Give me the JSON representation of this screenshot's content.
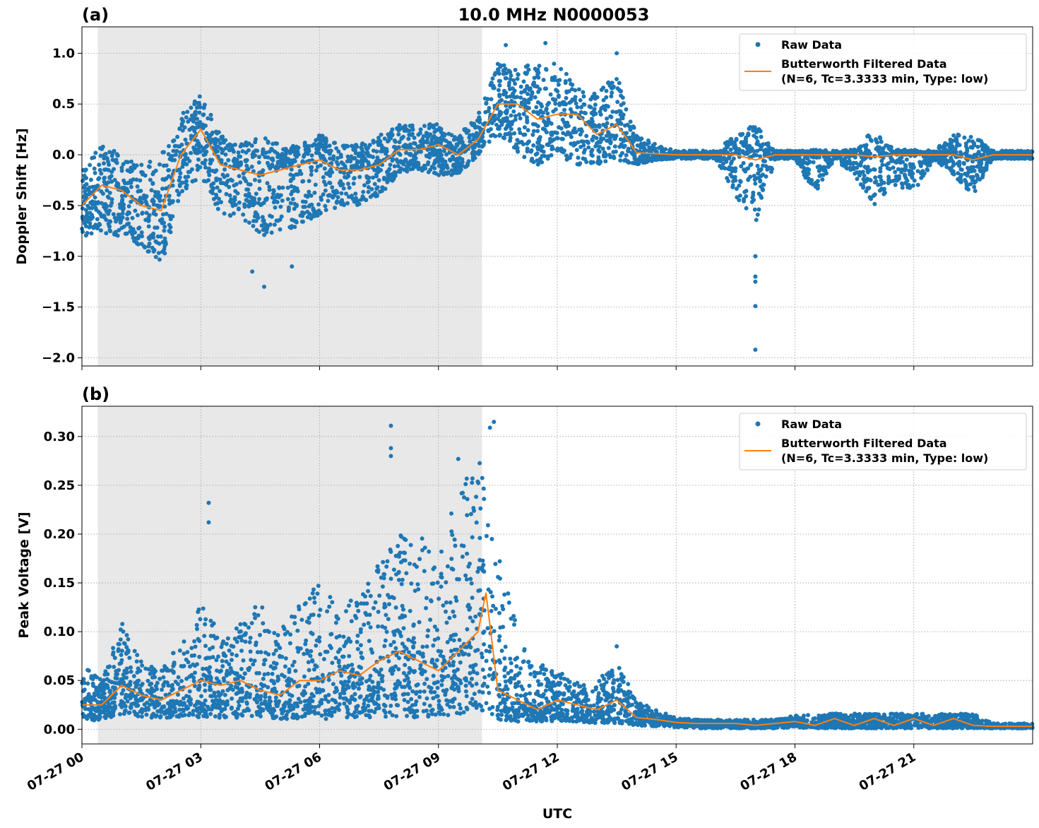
{
  "title": "10.0 MHz N0000053",
  "colors": {
    "raw": "#1f77b4",
    "filtered": "#ff7f0e",
    "shading": "#e8e8e8",
    "grid": "#b0b0b0"
  },
  "legend": {
    "raw": "Raw Data",
    "filtered_line1": "Butterworth Filtered Data",
    "filtered_line2": "(N=6, Tc=3.3333 min, Type: low)",
    "placement": "top-right"
  },
  "chart_data": [
    {
      "type": "scatter",
      "panel_label": "(a)",
      "ylabel": "Doppler Shift [Hz]",
      "xlabel": "",
      "x_date": "07-27",
      "xlim": [
        "00:00",
        "24:00"
      ],
      "ylim": [
        -2.08,
        1.26
      ],
      "yticks": [
        1.0,
        0.5,
        0.0,
        -0.5,
        -1.0,
        -1.5,
        -2.0
      ],
      "ytick_labels": [
        "1.0",
        "0.5",
        "0.0",
        "−0.5",
        "−1.0",
        "−1.5",
        "−2.0"
      ],
      "grid": true,
      "shaded_interval": [
        "00:24",
        "10:06"
      ],
      "raw_envelope": {
        "x": [
          "00:00",
          "00:30",
          "01:00",
          "01:30",
          "02:00",
          "02:30",
          "03:00",
          "03:30",
          "04:00",
          "04:30",
          "05:00",
          "05:30",
          "06:00",
          "06:30",
          "07:00",
          "07:30",
          "08:00",
          "08:30",
          "09:00",
          "09:30",
          "10:00",
          "10:30",
          "11:00",
          "11:30",
          "12:00",
          "12:30",
          "13:00",
          "13:30",
          "14:00",
          "14:30",
          "15:00",
          "15:30",
          "16:00",
          "16:30",
          "17:00",
          "17:30",
          "18:00",
          "18:30",
          "19:00",
          "19:30",
          "20:00",
          "20:30",
          "21:00",
          "21:30",
          "22:00",
          "22:30",
          "23:00",
          "23:30",
          "24:00"
        ],
        "lower": [
          -0.8,
          -0.8,
          -0.8,
          -0.9,
          -1.1,
          -0.4,
          -0.2,
          -0.6,
          -0.6,
          -0.8,
          -0.8,
          -0.7,
          -0.6,
          -0.5,
          -0.5,
          -0.4,
          -0.2,
          -0.15,
          -0.2,
          -0.2,
          0.0,
          0.2,
          0.0,
          -0.1,
          0.0,
          -0.1,
          -0.1,
          -0.05,
          -0.1,
          -0.05,
          -0.04,
          -0.04,
          -0.04,
          -0.4,
          -0.7,
          -0.04,
          -0.04,
          -0.4,
          -0.04,
          -0.2,
          -0.5,
          -0.3,
          -0.4,
          -0.04,
          -0.2,
          -0.4,
          -0.04,
          -0.04,
          -0.04
        ],
        "upper": [
          -0.1,
          0.1,
          0.0,
          -0.1,
          0.0,
          0.4,
          0.6,
          0.2,
          0.1,
          0.2,
          0.1,
          0.1,
          0.2,
          0.1,
          0.1,
          0.2,
          0.3,
          0.3,
          0.3,
          0.2,
          0.4,
          0.9,
          0.9,
          0.9,
          0.9,
          0.7,
          0.6,
          0.8,
          0.2,
          0.1,
          0.04,
          0.04,
          0.04,
          0.2,
          0.3,
          0.04,
          0.04,
          0.05,
          0.04,
          0.05,
          0.25,
          0.05,
          0.05,
          0.04,
          0.2,
          0.2,
          0.04,
          0.04,
          0.04
        ]
      },
      "raw_outliers": [
        [
          "17:00",
          -1.92
        ],
        [
          "17:00",
          -1.49
        ],
        [
          "17:00",
          -1.25
        ],
        [
          "17:00",
          -1.2
        ],
        [
          "17:00",
          -1.0
        ],
        [
          "04:36",
          -1.3
        ],
        [
          "04:18",
          -1.15
        ],
        [
          "05:18",
          -1.1
        ],
        [
          "11:42",
          1.1
        ],
        [
          "10:42",
          1.08
        ],
        [
          "13:30",
          1.0
        ]
      ],
      "filtered": {
        "x": [
          "00:00",
          "00:30",
          "01:00",
          "01:30",
          "02:00",
          "02:30",
          "03:00",
          "03:30",
          "04:00",
          "04:30",
          "05:00",
          "05:30",
          "06:00",
          "06:30",
          "07:00",
          "07:30",
          "08:00",
          "08:30",
          "09:00",
          "09:30",
          "10:00",
          "10:30",
          "11:00",
          "11:30",
          "12:00",
          "12:30",
          "13:00",
          "13:30",
          "14:00",
          "14:30",
          "15:00",
          "15:30",
          "16:00",
          "16:30",
          "17:00",
          "17:30",
          "18:00",
          "18:30",
          "19:00",
          "19:30",
          "20:00",
          "20:30",
          "21:00",
          "21:30",
          "22:00",
          "22:30",
          "23:00",
          "23:30",
          "24:00"
        ],
        "y": [
          -0.5,
          -0.3,
          -0.35,
          -0.5,
          -0.55,
          0.0,
          0.25,
          -0.1,
          -0.15,
          -0.2,
          -0.15,
          -0.1,
          -0.05,
          -0.15,
          -0.15,
          -0.1,
          0.05,
          0.05,
          0.1,
          0.0,
          0.15,
          0.5,
          0.5,
          0.35,
          0.4,
          0.4,
          0.2,
          0.3,
          0.02,
          0.01,
          0.0,
          0.0,
          0.0,
          0.0,
          -0.05,
          0.0,
          0.0,
          0.0,
          0.0,
          0.0,
          -0.02,
          0.0,
          0.0,
          0.0,
          0.0,
          -0.05,
          0.0,
          0.0,
          0.0
        ]
      }
    },
    {
      "type": "scatter",
      "panel_label": "(b)",
      "ylabel": "Peak Voltage [V]",
      "xlabel": "UTC",
      "x_date": "07-27",
      "xlim": [
        "00:00",
        "24:00"
      ],
      "ylim": [
        -0.015,
        0.331
      ],
      "yticks": [
        0.3,
        0.25,
        0.2,
        0.15,
        0.1,
        0.05,
        0.0
      ],
      "ytick_labels": [
        "0.30",
        "0.25",
        "0.20",
        "0.15",
        "0.10",
        "0.05",
        "0.00"
      ],
      "xticks": [
        "00:00",
        "03:00",
        "06:00",
        "09:00",
        "12:00",
        "15:00",
        "18:00",
        "21:00"
      ],
      "xtick_labels": [
        "07-27 00",
        "07-27 03",
        "07-27 06",
        "07-27 09",
        "07-27 12",
        "07-27 15",
        "07-27 18",
        "07-27 21"
      ],
      "grid": true,
      "shaded_interval": [
        "00:24",
        "10:06"
      ],
      "raw_envelope": {
        "x": [
          "00:00",
          "00:30",
          "01:00",
          "01:30",
          "02:00",
          "02:30",
          "03:00",
          "03:30",
          "04:00",
          "04:30",
          "05:00",
          "05:30",
          "06:00",
          "06:30",
          "07:00",
          "07:30",
          "08:00",
          "08:30",
          "09:00",
          "09:30",
          "10:00",
          "10:30",
          "11:00",
          "11:30",
          "12:00",
          "12:30",
          "13:00",
          "13:30",
          "14:00",
          "14:30",
          "15:00",
          "15:30",
          "16:00",
          "16:30",
          "17:00",
          "17:30",
          "18:00",
          "18:30",
          "19:00",
          "19:30",
          "20:00",
          "20:30",
          "21:00",
          "21:30",
          "22:00",
          "22:30",
          "23:00",
          "23:30",
          "24:00"
        ],
        "lower": [
          0.008,
          0.01,
          0.015,
          0.012,
          0.012,
          0.012,
          0.012,
          0.012,
          0.012,
          0.012,
          0.01,
          0.01,
          0.01,
          0.012,
          0.012,
          0.012,
          0.012,
          0.012,
          0.012,
          0.015,
          0.02,
          0.01,
          0.008,
          0.008,
          0.008,
          0.008,
          0.006,
          0.006,
          0.004,
          0.003,
          0.002,
          0.001,
          0.001,
          0.001,
          0.001,
          0.001,
          0.002,
          0.001,
          0.001,
          0.001,
          0.001,
          0.001,
          0.001,
          0.001,
          0.001,
          0.001,
          0.001,
          0.001,
          0.001
        ],
        "upper": [
          0.07,
          0.05,
          0.11,
          0.07,
          0.06,
          0.09,
          0.13,
          0.1,
          0.12,
          0.13,
          0.1,
          0.13,
          0.15,
          0.13,
          0.14,
          0.17,
          0.2,
          0.2,
          0.19,
          0.24,
          0.28,
          0.2,
          0.1,
          0.07,
          0.06,
          0.05,
          0.05,
          0.07,
          0.03,
          0.02,
          0.012,
          0.01,
          0.01,
          0.01,
          0.01,
          0.01,
          0.014,
          0.016,
          0.016,
          0.016,
          0.016,
          0.016,
          0.016,
          0.016,
          0.016,
          0.016,
          0.006,
          0.006,
          0.006
        ]
      },
      "raw_outliers": [
        [
          "07:48",
          0.311
        ],
        [
          "07:48",
          0.288
        ],
        [
          "07:48",
          0.28
        ],
        [
          "03:12",
          0.232
        ],
        [
          "03:12",
          0.212
        ],
        [
          "10:24",
          0.315
        ],
        [
          "10:18",
          0.309
        ],
        [
          "09:30",
          0.277
        ],
        [
          "13:30",
          0.085
        ]
      ],
      "filtered": {
        "x": [
          "00:00",
          "00:30",
          "01:00",
          "01:30",
          "02:00",
          "02:30",
          "03:00",
          "03:30",
          "04:00",
          "04:30",
          "05:00",
          "05:30",
          "06:00",
          "06:30",
          "07:00",
          "07:30",
          "08:00",
          "08:30",
          "09:00",
          "09:30",
          "10:00",
          "10:12",
          "10:30",
          "11:00",
          "11:30",
          "12:00",
          "12:30",
          "13:00",
          "13:30",
          "14:00",
          "14:30",
          "15:00",
          "15:30",
          "16:00",
          "16:30",
          "17:00",
          "17:30",
          "18:00",
          "18:30",
          "19:00",
          "19:30",
          "20:00",
          "20:30",
          "21:00",
          "21:30",
          "22:00",
          "22:30",
          "23:00",
          "23:30",
          "24:00"
        ],
        "y": [
          0.025,
          0.025,
          0.045,
          0.035,
          0.03,
          0.04,
          0.05,
          0.045,
          0.05,
          0.04,
          0.035,
          0.05,
          0.05,
          0.06,
          0.055,
          0.07,
          0.08,
          0.07,
          0.06,
          0.08,
          0.1,
          0.14,
          0.04,
          0.03,
          0.02,
          0.03,
          0.025,
          0.02,
          0.03,
          0.012,
          0.01,
          0.007,
          0.006,
          0.006,
          0.006,
          0.004,
          0.006,
          0.008,
          0.004,
          0.011,
          0.004,
          0.011,
          0.004,
          0.011,
          0.004,
          0.011,
          0.004,
          0.003,
          0.003,
          0.003
        ]
      }
    }
  ]
}
